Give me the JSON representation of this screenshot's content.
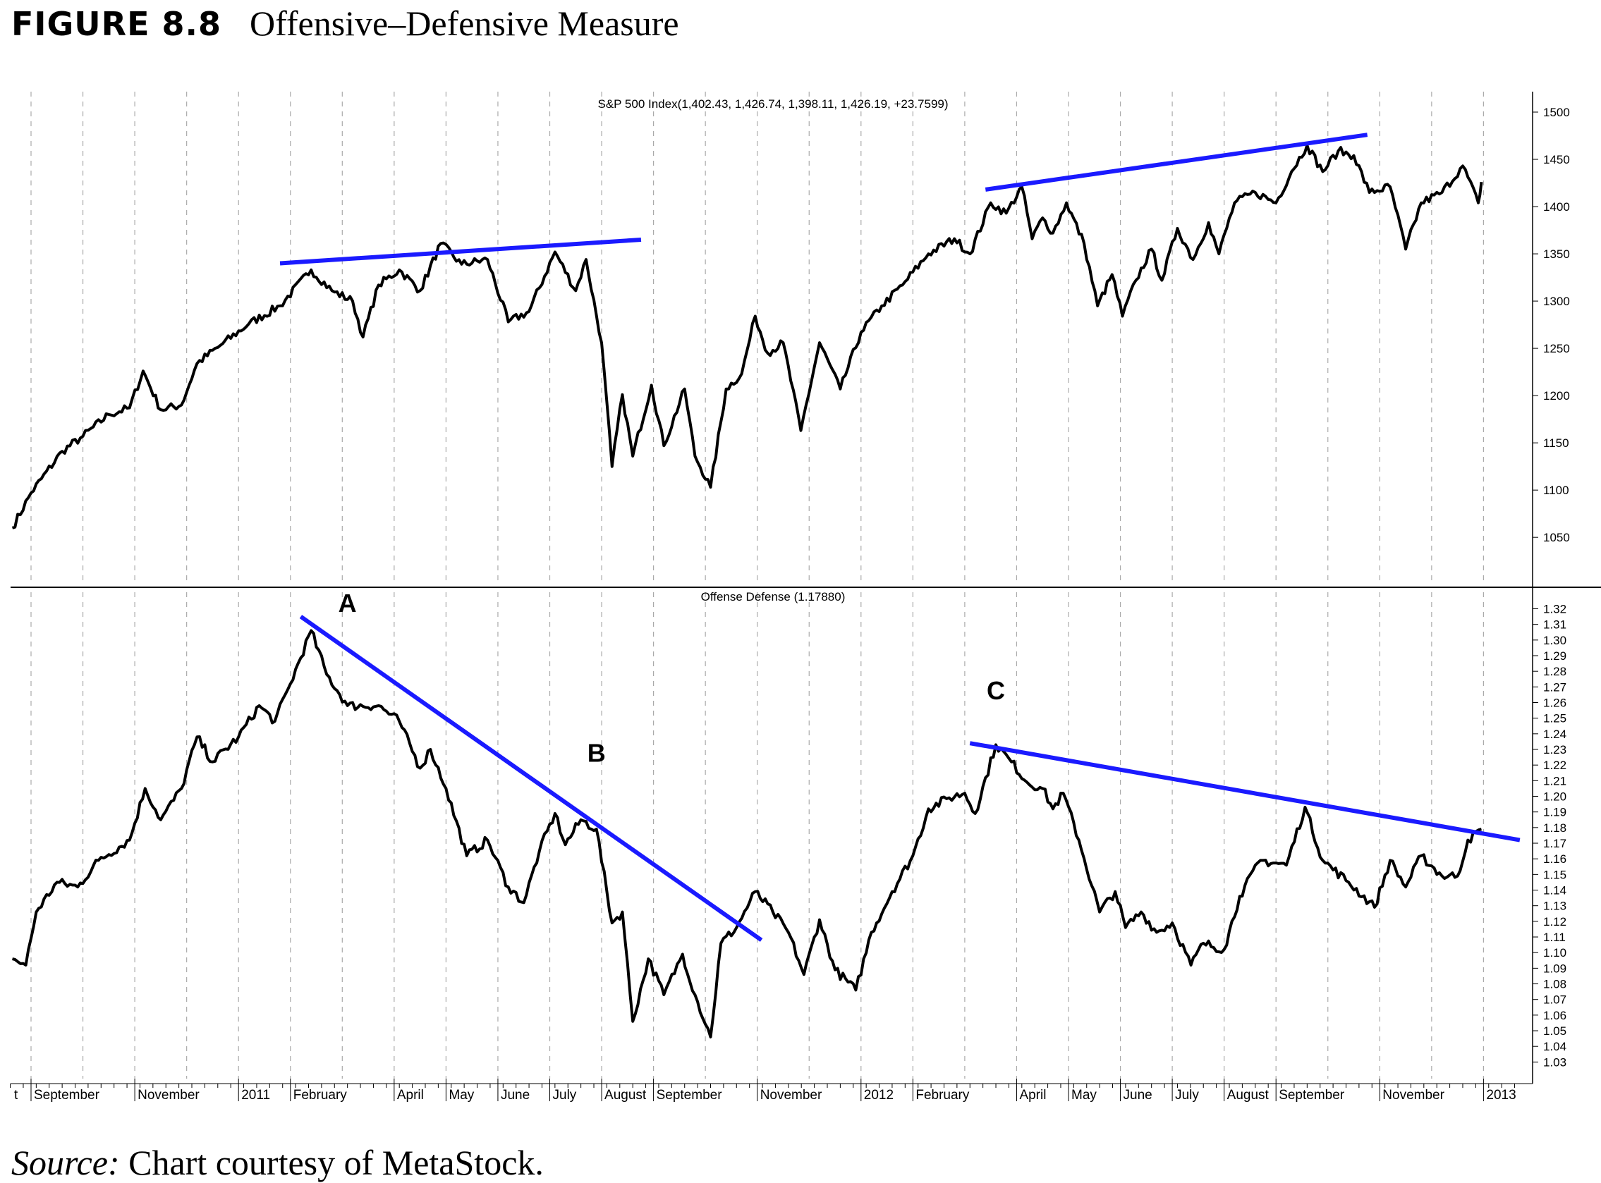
{
  "figure": {
    "number": "FIGURE 8.8",
    "name": "Offensive–Defensive Measure"
  },
  "source": {
    "label": "Source:",
    "text": " Chart courtesy of MetaStock."
  },
  "colors": {
    "price": "#000000",
    "trendline": "#1a1aff",
    "grid": "#aaaaaa"
  },
  "chart_data": [
    {
      "type": "line",
      "title": "S&P 500 Index(1,402.43, 1,426.74, 1,398.11, 1,426.19, +23.7599)",
      "x_unit": "months since Sep 2010",
      "ylim": [
        1000,
        1520
      ],
      "yticks": [
        1050,
        1100,
        1150,
        1200,
        1250,
        1300,
        1350,
        1400,
        1450,
        1500
      ],
      "grid": "vertical dashed monthly",
      "series": [
        {
          "name": "S&P 500 Index",
          "points": [
            [
              -0.36,
              1060
            ],
            [
              0,
              1097
            ],
            [
              0.6,
              1141
            ],
            [
              1.0,
              1157
            ],
            [
              1.5,
              1180
            ],
            [
              1.9,
              1187
            ],
            [
              2.16,
              1226
            ],
            [
              2.5,
              1185
            ],
            [
              2.9,
              1190
            ],
            [
              3.2,
              1234
            ],
            [
              3.6,
              1251
            ],
            [
              4.2,
              1276
            ],
            [
              4.8,
              1295
            ],
            [
              5.4,
              1333
            ],
            [
              5.8,
              1311
            ],
            [
              6.2,
              1300
            ],
            [
              6.4,
              1262
            ],
            [
              6.7,
              1317
            ],
            [
              7.1,
              1333
            ],
            [
              7.5,
              1311
            ],
            [
              7.9,
              1361
            ],
            [
              8.3,
              1339
            ],
            [
              8.8,
              1344
            ],
            [
              9.2,
              1278
            ],
            [
              9.6,
              1289
            ],
            [
              10.1,
              1352
            ],
            [
              10.5,
              1311
            ],
            [
              10.7,
              1344
            ],
            [
              11.0,
              1256
            ],
            [
              11.2,
              1125
            ],
            [
              11.4,
              1201
            ],
            [
              11.6,
              1136
            ],
            [
              11.96,
              1211
            ],
            [
              12.2,
              1147
            ],
            [
              12.6,
              1207
            ],
            [
              12.8,
              1136
            ],
            [
              13.1,
              1103
            ],
            [
              13.4,
              1207
            ],
            [
              13.7,
              1223
            ],
            [
              13.96,
              1284
            ],
            [
              14.2,
              1245
            ],
            [
              14.5,
              1256
            ],
            [
              14.84,
              1163
            ],
            [
              15.2,
              1256
            ],
            [
              15.6,
              1207
            ],
            [
              16.0,
              1267
            ],
            [
              16.4,
              1295
            ],
            [
              16.8,
              1317
            ],
            [
              17.3,
              1350
            ],
            [
              17.8,
              1366
            ],
            [
              18.1,
              1350
            ],
            [
              18.5,
              1404
            ],
            [
              18.8,
              1393
            ],
            [
              19.1,
              1421
            ],
            [
              19.3,
              1366
            ],
            [
              19.5,
              1388
            ],
            [
              19.7,
              1372
            ],
            [
              19.96,
              1404
            ],
            [
              20.3,
              1361
            ],
            [
              20.56,
              1295
            ],
            [
              20.84,
              1328
            ],
            [
              21.04,
              1284
            ],
            [
              21.3,
              1322
            ],
            [
              21.6,
              1355
            ],
            [
              21.8,
              1322
            ],
            [
              22.1,
              1377
            ],
            [
              22.4,
              1344
            ],
            [
              22.7,
              1383
            ],
            [
              22.9,
              1350
            ],
            [
              23.2,
              1404
            ],
            [
              23.6,
              1415
            ],
            [
              24.0,
              1404
            ],
            [
              24.3,
              1437
            ],
            [
              24.6,
              1465
            ],
            [
              24.9,
              1437
            ],
            [
              25.2,
              1459
            ],
            [
              25.5,
              1454
            ],
            [
              25.8,
              1415
            ],
            [
              26.2,
              1421
            ],
            [
              26.5,
              1355
            ],
            [
              26.8,
              1404
            ],
            [
              27.2,
              1415
            ],
            [
              27.6,
              1443
            ],
            [
              27.9,
              1404
            ],
            [
              27.96,
              1426
            ]
          ]
        }
      ],
      "trendlines": [
        [
          [
            4.8,
            1340
          ],
          [
            11.76,
            1365
          ]
        ],
        [
          [
            18.4,
            1418
          ],
          [
            25.76,
            1476
          ]
        ]
      ]
    },
    {
      "type": "line",
      "title": "Offense Defense (1.17880)",
      "x_unit": "months since Sep 2010",
      "ylim": [
        1.02,
        1.33
      ],
      "yticks": [
        1.03,
        1.04,
        1.05,
        1.06,
        1.07,
        1.08,
        1.09,
        1.1,
        1.11,
        1.12,
        1.13,
        1.14,
        1.15,
        1.16,
        1.17,
        1.18,
        1.19,
        1.2,
        1.21,
        1.22,
        1.23,
        1.24,
        1.25,
        1.26,
        1.27,
        1.28,
        1.29,
        1.3,
        1.31,
        1.32
      ],
      "series": [
        {
          "name": "Offense Defense",
          "points": [
            [
              -0.36,
              1.096
            ],
            [
              -0.1,
              1.092
            ],
            [
              0.1,
              1.126
            ],
            [
              0.5,
              1.145
            ],
            [
              0.9,
              1.142
            ],
            [
              1.3,
              1.159
            ],
            [
              1.9,
              1.172
            ],
            [
              2.2,
              1.205
            ],
            [
              2.5,
              1.185
            ],
            [
              2.9,
              1.205
            ],
            [
              3.2,
              1.238
            ],
            [
              3.5,
              1.222
            ],
            [
              4.0,
              1.238
            ],
            [
              4.4,
              1.258
            ],
            [
              4.7,
              1.248
            ],
            [
              5.0,
              1.272
            ],
            [
              5.4,
              1.306
            ],
            [
              5.7,
              1.278
            ],
            [
              6.1,
              1.258
            ],
            [
              6.7,
              1.258
            ],
            [
              7.1,
              1.248
            ],
            [
              7.5,
              1.218
            ],
            [
              7.7,
              1.23
            ],
            [
              8.0,
              1.205
            ],
            [
              8.4,
              1.162
            ],
            [
              8.8,
              1.172
            ],
            [
              9.2,
              1.142
            ],
            [
              9.5,
              1.132
            ],
            [
              9.8,
              1.165
            ],
            [
              10.1,
              1.189
            ],
            [
              10.3,
              1.169
            ],
            [
              10.6,
              1.185
            ],
            [
              10.9,
              1.179
            ],
            [
              11.2,
              1.119
            ],
            [
              11.4,
              1.126
            ],
            [
              11.6,
              1.056
            ],
            [
              11.9,
              1.096
            ],
            [
              12.2,
              1.073
            ],
            [
              12.56,
              1.099
            ],
            [
              12.8,
              1.073
            ],
            [
              13.1,
              1.046
            ],
            [
              13.3,
              1.106
            ],
            [
              13.6,
              1.116
            ],
            [
              13.96,
              1.139
            ],
            [
              14.3,
              1.126
            ],
            [
              14.6,
              1.113
            ],
            [
              14.9,
              1.086
            ],
            [
              15.2,
              1.121
            ],
            [
              15.5,
              1.089
            ],
            [
              15.9,
              1.076
            ],
            [
              16.2,
              1.113
            ],
            [
              16.6,
              1.139
            ],
            [
              17.0,
              1.162
            ],
            [
              17.3,
              1.192
            ],
            [
              17.7,
              1.199
            ],
            [
              18.0,
              1.202
            ],
            [
              18.2,
              1.189
            ],
            [
              18.6,
              1.233
            ],
            [
              18.9,
              1.222
            ],
            [
              19.2,
              1.209
            ],
            [
              19.5,
              1.205
            ],
            [
              19.7,
              1.192
            ],
            [
              19.9,
              1.202
            ],
            [
              20.2,
              1.172
            ],
            [
              20.6,
              1.126
            ],
            [
              20.9,
              1.139
            ],
            [
              21.1,
              1.116
            ],
            [
              21.4,
              1.126
            ],
            [
              21.7,
              1.113
            ],
            [
              22.0,
              1.119
            ],
            [
              22.36,
              1.092
            ],
            [
              22.6,
              1.106
            ],
            [
              23.0,
              1.102
            ],
            [
              23.3,
              1.136
            ],
            [
              23.7,
              1.159
            ],
            [
              24.2,
              1.156
            ],
            [
              24.56,
              1.193
            ],
            [
              24.9,
              1.159
            ],
            [
              25.4,
              1.145
            ],
            [
              25.9,
              1.129
            ],
            [
              26.2,
              1.159
            ],
            [
              26.5,
              1.142
            ],
            [
              26.8,
              1.162
            ],
            [
              27.2,
              1.149
            ],
            [
              27.5,
              1.149
            ],
            [
              27.7,
              1.172
            ],
            [
              27.96,
              1.179
            ]
          ]
        }
      ],
      "trendlines": [
        [
          [
            5.2,
            1.315
          ],
          [
            14.08,
            1.108
          ]
        ],
        [
          [
            18.1,
            1.234
          ],
          [
            28.7,
            1.172
          ]
        ]
      ],
      "annotations": [
        {
          "text": "A",
          "x": 6.1,
          "y": 1.318
        },
        {
          "text": "B",
          "x": 10.9,
          "y": 1.222
        },
        {
          "text": "C",
          "x": 18.6,
          "y": 1.262
        }
      ]
    }
  ],
  "x_axis_labels": [
    {
      "text": "t",
      "m": -0.5
    },
    {
      "text": "September",
      "m": 0
    },
    {
      "text": "November",
      "m": 2
    },
    {
      "text": "2011",
      "m": 4
    },
    {
      "text": "February",
      "m": 5
    },
    {
      "text": "April",
      "m": 7
    },
    {
      "text": "May",
      "m": 8
    },
    {
      "text": "June",
      "m": 9
    },
    {
      "text": "July",
      "m": 10
    },
    {
      "text": "August",
      "m": 11
    },
    {
      "text": "September",
      "m": 12
    },
    {
      "text": "November",
      "m": 14
    },
    {
      "text": "2012",
      "m": 16
    },
    {
      "text": "February",
      "m": 17
    },
    {
      "text": "April",
      "m": 19
    },
    {
      "text": "May",
      "m": 20
    },
    {
      "text": "June",
      "m": 21
    },
    {
      "text": "July",
      "m": 22
    },
    {
      "text": "August",
      "m": 23
    },
    {
      "text": "September",
      "m": 24
    },
    {
      "text": "November",
      "m": 26
    },
    {
      "text": "2013",
      "m": 28
    }
  ]
}
